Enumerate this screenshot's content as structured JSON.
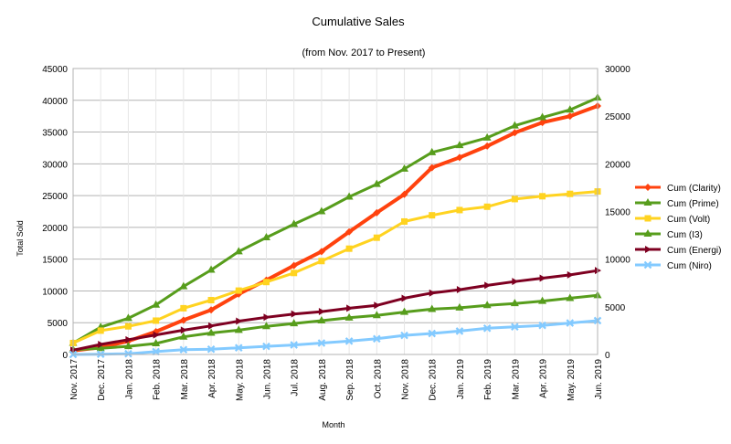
{
  "chart_data": {
    "type": "line",
    "title": "Cumulative Sales",
    "subtitle": "(from Nov. 2017 to Present)",
    "xlabel": "Month",
    "ylabel": "Total Sold",
    "ylim": [
      0,
      45000
    ],
    "y2lim": [
      0,
      30000
    ],
    "yticks": [
      "0",
      "5000",
      "10000",
      "15000",
      "20000",
      "25000",
      "30000",
      "35000",
      "40000",
      "45000"
    ],
    "y2ticks": [
      "0",
      "5000",
      "10000",
      "15000",
      "20000",
      "25000",
      "30000"
    ],
    "grid": true,
    "legend_position": "right",
    "categories": [
      "Nov. 2017",
      "Dec. 2017",
      "Jan. 2018",
      "Feb. 2018",
      "Mar. 2018",
      "Apr. 2018",
      "May. 2018",
      "Jun. 2018",
      "Jul. 2018",
      "Aug. 2018",
      "Sep. 2018",
      "Oct. 2018",
      "Nov. 2018",
      "Dec. 2018",
      "Jan. 2019",
      "Feb. 2019",
      "Mar. 2019",
      "Apr. 2019",
      "May. 2019",
      "Jun. 2019"
    ],
    "series": [
      {
        "name": "Cum (Clarity)",
        "color": "#ff420e",
        "marker": "diamond",
        "axis": "left",
        "values": [
          600,
          1100,
          2100,
          3600,
          5400,
          7000,
          9500,
          11700,
          14000,
          16200,
          19300,
          22300,
          25200,
          29400,
          31000,
          32800,
          34900,
          36500,
          37500,
          39100
        ]
      },
      {
        "name": "Cum (Prime)",
        "color": "#579d1c",
        "marker": "triangle",
        "axis": "left",
        "values": [
          1800,
          4300,
          5700,
          7800,
          10700,
          13300,
          16200,
          18400,
          20500,
          22500,
          24800,
          26800,
          29200,
          31800,
          32900,
          34100,
          36000,
          37300,
          38500,
          40400
        ]
      },
      {
        "name": "Cum (Volt)",
        "color": "#ffd320",
        "marker": "square",
        "axis": "right",
        "values": [
          1200,
          2500,
          2950,
          3550,
          4850,
          5700,
          6700,
          7600,
          8550,
          9800,
          11100,
          12250,
          13950,
          14600,
          15150,
          15500,
          16300,
          16600,
          16850,
          17100
        ]
      },
      {
        "name": "Cum (I3)",
        "color": "#579d1c",
        "marker": "triangle",
        "axis": "right",
        "values": [
          500,
          650,
          850,
          1150,
          1850,
          2250,
          2550,
          2950,
          3250,
          3550,
          3850,
          4100,
          4450,
          4750,
          4900,
          5150,
          5350,
          5600,
          5900,
          6200
        ]
      },
      {
        "name": "Cum (Energi)",
        "color": "#7e0021",
        "marker": "arrow",
        "axis": "right",
        "values": [
          450,
          1050,
          1550,
          2050,
          2550,
          3000,
          3500,
          3900,
          4250,
          4500,
          4850,
          5150,
          5900,
          6450,
          6800,
          7250,
          7650,
          8000,
          8350,
          8800
        ]
      },
      {
        "name": "Cum (Niro)",
        "color": "#83caff",
        "marker": "x",
        "axis": "right",
        "values": [
          0,
          30,
          80,
          300,
          500,
          550,
          700,
          850,
          1000,
          1200,
          1400,
          1650,
          2000,
          2200,
          2450,
          2750,
          2900,
          3050,
          3300,
          3550
        ]
      }
    ]
  }
}
